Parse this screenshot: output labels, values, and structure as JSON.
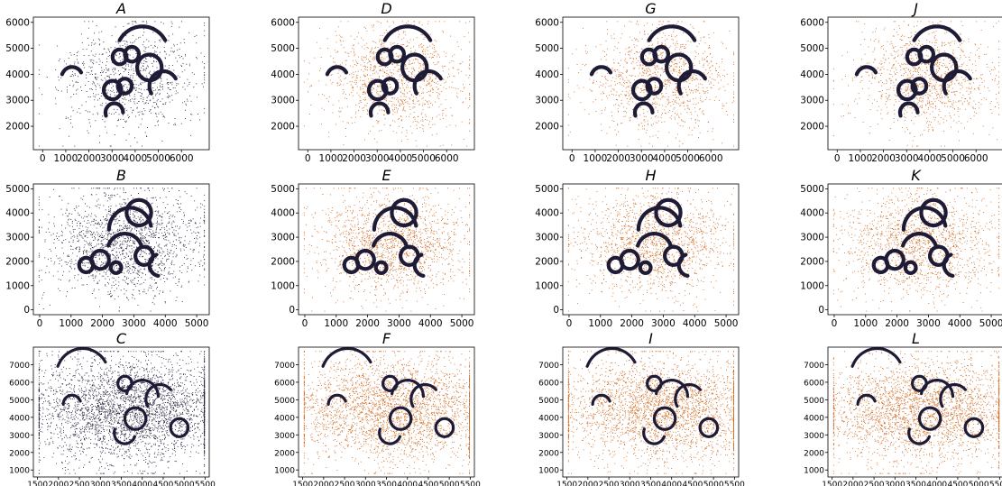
{
  "colors": {
    "dark_points": "#1e1b36",
    "orange_points": "#d2691e",
    "background": "#ffffff"
  },
  "chart_data": [
    {
      "id": "A",
      "type": "scatter",
      "title": "A",
      "row": 0,
      "col": 0,
      "mode": "dark",
      "xlim": [
        -400,
        7200
      ],
      "ylim": [
        1100,
        6200
      ],
      "xticks": [
        0,
        1000,
        2000,
        3000,
        4000,
        5000,
        6000
      ],
      "yticks": [
        2000,
        3000,
        4000,
        5000,
        6000
      ],
      "xtick_labels": [
        "0",
        "1000",
        "2000",
        "3000",
        "4000",
        "5000",
        "6000"
      ],
      "ytick_labels": [
        "2000",
        "3000",
        "4000",
        "5000",
        "6000"
      ],
      "grid": false,
      "legend": "none"
    },
    {
      "id": "D",
      "type": "scatter",
      "title": "D",
      "row": 0,
      "col": 1,
      "mode": "orange",
      "xlim": [
        -400,
        7200
      ],
      "ylim": [
        1100,
        6200
      ],
      "xticks": [
        0,
        1000,
        2000,
        3000,
        4000,
        5000,
        6000
      ],
      "yticks": [
        2000,
        3000,
        4000,
        5000,
        6000
      ],
      "xtick_labels": [
        "0",
        "1000",
        "2000",
        "3000",
        "4000",
        "5000",
        "6000"
      ],
      "ytick_labels": [
        "2000",
        "3000",
        "4000",
        "5000",
        "6000"
      ],
      "grid": false,
      "legend": "none"
    },
    {
      "id": "G",
      "type": "scatter",
      "title": "G",
      "row": 0,
      "col": 2,
      "mode": "orange",
      "xlim": [
        -400,
        7200
      ],
      "ylim": [
        1100,
        6200
      ],
      "xticks": [
        0,
        1000,
        2000,
        3000,
        4000,
        5000,
        6000
      ],
      "yticks": [
        2000,
        3000,
        4000,
        5000,
        6000
      ],
      "xtick_labels": [
        "0",
        "1000",
        "2000",
        "3000",
        "4000",
        "5000",
        "6000"
      ],
      "ytick_labels": [
        "2000",
        "3000",
        "4000",
        "5000",
        "6000"
      ],
      "grid": false,
      "legend": "none"
    },
    {
      "id": "J",
      "type": "scatter",
      "title": "J",
      "row": 0,
      "col": 3,
      "mode": "orange",
      "xlim": [
        -400,
        7200
      ],
      "ylim": [
        1100,
        6200
      ],
      "xticks": [
        0,
        1000,
        2000,
        3000,
        4000,
        5000,
        6000
      ],
      "yticks": [
        2000,
        3000,
        4000,
        5000,
        6000
      ],
      "xtick_labels": [
        "0",
        "1000",
        "2000",
        "3000",
        "4000",
        "5000",
        "6000"
      ],
      "ytick_labels": [
        "2000",
        "3000",
        "4000",
        "5000",
        "6000"
      ],
      "grid": false,
      "legend": "none"
    },
    {
      "id": "B",
      "type": "scatter",
      "title": "B",
      "row": 1,
      "col": 0,
      "mode": "dark",
      "xlim": [
        -200,
        5400
      ],
      "ylim": [
        -200,
        5200
      ],
      "xticks": [
        0,
        1000,
        2000,
        3000,
        4000,
        5000
      ],
      "yticks": [
        0,
        1000,
        2000,
        3000,
        4000,
        5000
      ],
      "xtick_labels": [
        "0",
        "1000",
        "2000",
        "3000",
        "4000",
        "5000"
      ],
      "ytick_labels": [
        "0",
        "1000",
        "2000",
        "3000",
        "4000",
        "5000"
      ],
      "grid": false,
      "legend": "none"
    },
    {
      "id": "E",
      "type": "scatter",
      "title": "E",
      "row": 1,
      "col": 1,
      "mode": "orange",
      "xlim": [
        -200,
        5400
      ],
      "ylim": [
        -200,
        5200
      ],
      "xticks": [
        0,
        1000,
        2000,
        3000,
        4000,
        5000
      ],
      "yticks": [
        0,
        1000,
        2000,
        3000,
        4000,
        5000
      ],
      "xtick_labels": [
        "0",
        "1000",
        "2000",
        "3000",
        "4000",
        "5000"
      ],
      "ytick_labels": [
        "0",
        "1000",
        "2000",
        "3000",
        "4000",
        "5000"
      ],
      "grid": false,
      "legend": "none"
    },
    {
      "id": "H",
      "type": "scatter",
      "title": "H",
      "row": 1,
      "col": 2,
      "mode": "orange",
      "xlim": [
        -200,
        5400
      ],
      "ylim": [
        -200,
        5200
      ],
      "xticks": [
        0,
        1000,
        2000,
        3000,
        4000,
        5000
      ],
      "yticks": [
        0,
        1000,
        2000,
        3000,
        4000,
        5000
      ],
      "xtick_labels": [
        "0",
        "1000",
        "2000",
        "3000",
        "4000",
        "5000"
      ],
      "ytick_labels": [
        "0",
        "1000",
        "2000",
        "3000",
        "4000",
        "5000"
      ],
      "grid": false,
      "legend": "none"
    },
    {
      "id": "K",
      "type": "scatter",
      "title": "K",
      "row": 1,
      "col": 3,
      "mode": "orange",
      "xlim": [
        -200,
        5400
      ],
      "ylim": [
        -200,
        5200
      ],
      "xticks": [
        0,
        1000,
        2000,
        3000,
        4000,
        5000
      ],
      "yticks": [
        0,
        1000,
        2000,
        3000,
        4000,
        5000
      ],
      "xtick_labels": [
        "0",
        "1000",
        "2000",
        "3000",
        "4000",
        "5000"
      ],
      "ytick_labels": [
        "0",
        "1000",
        "2000",
        "3000",
        "4000",
        "5000"
      ],
      "grid": false,
      "legend": "none"
    },
    {
      "id": "C",
      "type": "scatter",
      "title": "C",
      "row": 2,
      "col": 0,
      "mode": "dark",
      "xlim": [
        1400,
        5600
      ],
      "ylim": [
        600,
        8000
      ],
      "xticks": [
        1500,
        2000,
        2500,
        3000,
        3500,
        4000,
        4500,
        5000,
        5500
      ],
      "yticks": [
        1000,
        2000,
        3000,
        4000,
        5000,
        6000,
        7000
      ],
      "xtick_labels": [
        "1500",
        "2000",
        "2500",
        "3000",
        "3500",
        "4000",
        "4500",
        "5000",
        "5500"
      ],
      "ytick_labels": [
        "1000",
        "2000",
        "3000",
        "4000",
        "5000",
        "6000",
        "7000"
      ],
      "grid": false,
      "legend": "none"
    },
    {
      "id": "F",
      "type": "scatter",
      "title": "F",
      "row": 2,
      "col": 1,
      "mode": "orange",
      "xlim": [
        1400,
        5600
      ],
      "ylim": [
        600,
        8000
      ],
      "xticks": [
        1500,
        2000,
        2500,
        3000,
        3500,
        4000,
        4500,
        5000,
        5500
      ],
      "yticks": [
        1000,
        2000,
        3000,
        4000,
        5000,
        6000,
        7000
      ],
      "xtick_labels": [
        "1500",
        "2000",
        "2500",
        "3000",
        "3500",
        "4000",
        "4500",
        "5000",
        "5500"
      ],
      "ytick_labels": [
        "1000",
        "2000",
        "3000",
        "4000",
        "5000",
        "6000",
        "7000"
      ],
      "grid": false,
      "legend": "none"
    },
    {
      "id": "I",
      "type": "scatter",
      "title": "I",
      "row": 2,
      "col": 2,
      "mode": "orange",
      "xlim": [
        1400,
        5600
      ],
      "ylim": [
        600,
        8000
      ],
      "xticks": [
        1500,
        2000,
        2500,
        3000,
        3500,
        4000,
        4500,
        5000,
        5500
      ],
      "yticks": [
        1000,
        2000,
        3000,
        4000,
        5000,
        6000,
        7000
      ],
      "xtick_labels": [
        "1500",
        "2000",
        "2500",
        "3000",
        "3500",
        "4000",
        "4500",
        "5000",
        "5500"
      ],
      "ytick_labels": [
        "1000",
        "2000",
        "3000",
        "4000",
        "5000",
        "6000",
        "7000"
      ],
      "grid": false,
      "legend": "none"
    },
    {
      "id": "L",
      "type": "scatter",
      "title": "L",
      "row": 2,
      "col": 3,
      "mode": "orange",
      "xlim": [
        1400,
        5600
      ],
      "ylim": [
        600,
        8000
      ],
      "xticks": [
        1500,
        2000,
        2500,
        3000,
        3500,
        4000,
        4500,
        5000,
        5500
      ],
      "yticks": [
        1000,
        2000,
        3000,
        4000,
        5000,
        6000,
        7000
      ],
      "xtick_labels": [
        "1500",
        "2000",
        "2500",
        "3000",
        "3500",
        "4000",
        "4500",
        "5000",
        "5500"
      ],
      "ytick_labels": [
        "1000",
        "2000",
        "3000",
        "4000",
        "5000",
        "6000",
        "7000"
      ],
      "grid": false,
      "legend": "none"
    }
  ]
}
